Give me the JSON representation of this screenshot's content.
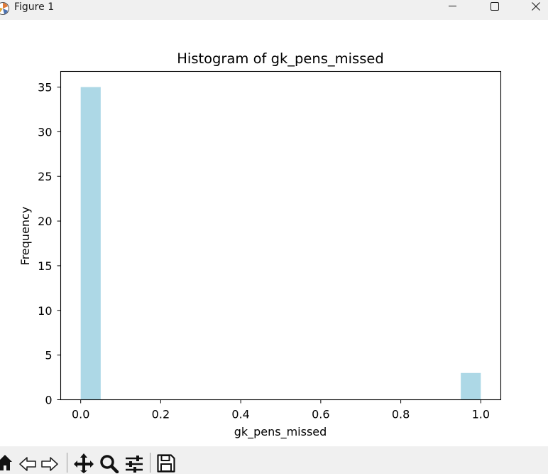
{
  "window": {
    "title": "Figure 1"
  },
  "icons": {
    "app": "matplotlib-figure-icon",
    "minimize": "minimize-icon",
    "maximize": "maximize-icon",
    "close": "close-icon",
    "toolbar": [
      "home-icon",
      "back-arrow-icon",
      "forward-arrow-icon",
      "pan-move-icon",
      "zoom-magnifier-icon",
      "configure-subplots-icon",
      "save-floppy-icon"
    ]
  },
  "chart_data": {
    "type": "bar",
    "title": "Histogram of gk_pens_missed",
    "xlabel": "gk_pens_missed",
    "ylabel": "Frequency",
    "bins": [
      {
        "x0": 0.0,
        "x1": 0.05,
        "count": 35
      },
      {
        "x0": 0.05,
        "x1": 0.1,
        "count": 0
      },
      {
        "x0": 0.1,
        "x1": 0.15,
        "count": 0
      },
      {
        "x0": 0.15,
        "x1": 0.2,
        "count": 0
      },
      {
        "x0": 0.2,
        "x1": 0.25,
        "count": 0
      },
      {
        "x0": 0.25,
        "x1": 0.3,
        "count": 0
      },
      {
        "x0": 0.3,
        "x1": 0.35,
        "count": 0
      },
      {
        "x0": 0.35,
        "x1": 0.4,
        "count": 0
      },
      {
        "x0": 0.4,
        "x1": 0.45,
        "count": 0
      },
      {
        "x0": 0.45,
        "x1": 0.5,
        "count": 0
      },
      {
        "x0": 0.5,
        "x1": 0.55,
        "count": 0
      },
      {
        "x0": 0.55,
        "x1": 0.6,
        "count": 0
      },
      {
        "x0": 0.6,
        "x1": 0.65,
        "count": 0
      },
      {
        "x0": 0.65,
        "x1": 0.7,
        "count": 0
      },
      {
        "x0": 0.7,
        "x1": 0.75,
        "count": 0
      },
      {
        "x0": 0.75,
        "x1": 0.8,
        "count": 0
      },
      {
        "x0": 0.8,
        "x1": 0.85,
        "count": 0
      },
      {
        "x0": 0.85,
        "x1": 0.9,
        "count": 0
      },
      {
        "x0": 0.9,
        "x1": 0.95,
        "count": 0
      },
      {
        "x0": 0.95,
        "x1": 1.0,
        "count": 3
      }
    ],
    "xlim": [
      -0.05,
      1.05
    ],
    "ylim": [
      0,
      36.75
    ],
    "xticks": [
      0.0,
      0.2,
      0.4,
      0.6,
      0.8,
      1.0
    ],
    "xtick_labels": [
      "0.0",
      "0.2",
      "0.4",
      "0.6",
      "0.8",
      "1.0"
    ],
    "yticks": [
      0,
      5,
      10,
      15,
      20,
      25,
      30,
      35
    ],
    "ytick_labels": [
      "0",
      "5",
      "10",
      "15",
      "20",
      "25",
      "30",
      "35"
    ],
    "bar_color": "#add8e6",
    "grid": false,
    "legend": "none"
  }
}
